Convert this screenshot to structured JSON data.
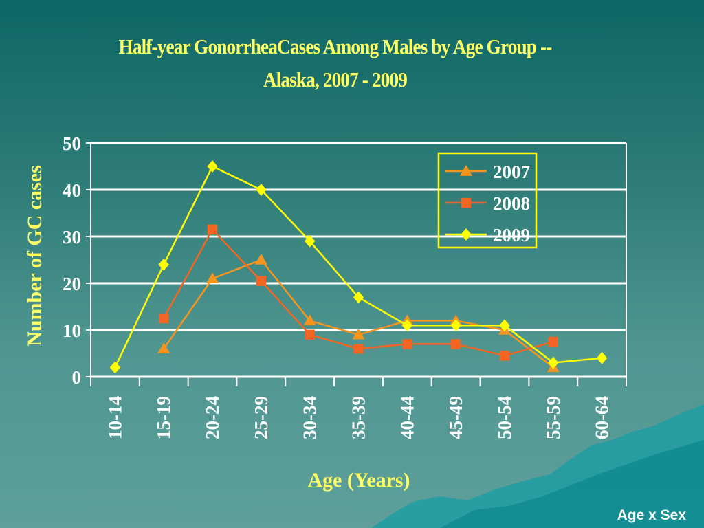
{
  "slide": {
    "footer": "Age x Sex"
  },
  "colors": {
    "title": "#ffff66",
    "axis_text": "#ffffff",
    "axis_label": "#ffff66",
    "gridlines": "#ffffff",
    "legend_border": "#ffff00"
  },
  "chart_data": {
    "type": "line",
    "title_line1": "Half-year GonorrheaCases Among Males by Age Group --",
    "title_line2": "Alaska,  2007 - 2009",
    "xlabel": "Age (Years)",
    "ylabel": "Number of GC cases",
    "ylim": [
      0,
      50
    ],
    "yticks": [
      "0",
      "10",
      "20",
      "30",
      "40",
      "50"
    ],
    "grid": true,
    "legend_position": "top-right",
    "categories": [
      "10-14",
      "15-19",
      "20-24",
      "25-29",
      "30-34",
      "35-39",
      "40-44",
      "45-49",
      "50-54",
      "55-59",
      "60-64"
    ],
    "series": [
      {
        "name": "2007",
        "color": "#f7941d",
        "marker": "triangle",
        "values": [
          null,
          6,
          21,
          25,
          12,
          9,
          12,
          12,
          10,
          2,
          null
        ]
      },
      {
        "name": "2008",
        "color": "#f26522",
        "marker": "square",
        "values": [
          null,
          12.5,
          31.5,
          20.5,
          9,
          6,
          7,
          7,
          4.5,
          7.5,
          null
        ]
      },
      {
        "name": "2009",
        "color": "#ffff00",
        "marker": "diamond",
        "values": [
          2,
          24,
          45,
          40,
          29,
          17,
          11,
          11,
          11,
          3,
          4
        ]
      }
    ]
  }
}
